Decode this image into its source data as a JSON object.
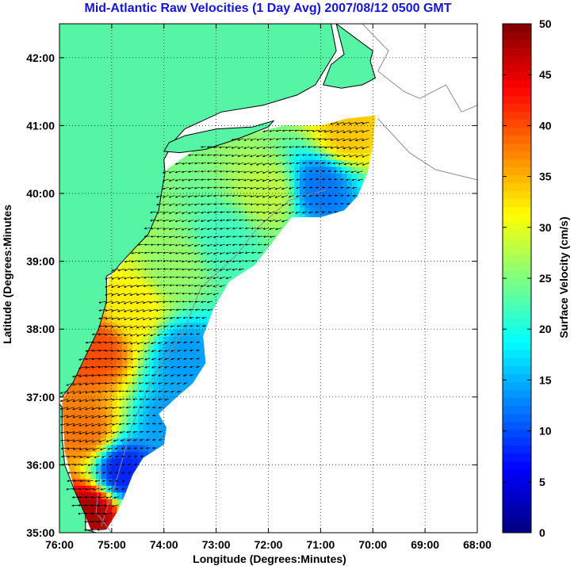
{
  "chart_data": {
    "type": "heatmap",
    "title": "Mid-Atlantic Raw Velocities (1 Day Avg) 2007/08/12 0500 GMT",
    "xlabel": "Longitude (Degrees:Minutes)",
    "ylabel": "Latitude (Degrees:Minutes",
    "xlim": [
      -76,
      -68
    ],
    "ylim": [
      35,
      42.5
    ],
    "xticks": [
      -76,
      -75,
      -74,
      -73,
      -72,
      -71,
      -70,
      -69,
      -68
    ],
    "xtick_labels": [
      "76:00",
      "75:00",
      "74:00",
      "73:00",
      "72:00",
      "71:00",
      "70:00",
      "69:00",
      "68:00"
    ],
    "yticks": [
      35,
      36,
      37,
      38,
      39,
      40,
      41,
      42
    ],
    "ytick_labels": [
      "35:00",
      "36:00",
      "37:00",
      "38:00",
      "39:00",
      "40:00",
      "41:00",
      "42:00"
    ],
    "grid": "dotted",
    "colorbar": {
      "label": "Surface Velocity (cm/s)",
      "min": 0,
      "max": 50,
      "ticks": [
        0,
        5,
        10,
        15,
        20,
        25,
        30,
        35,
        40,
        45,
        50
      ],
      "tick_labels": [
        "0",
        "5",
        "10",
        "15",
        "20",
        "25",
        "30",
        "35",
        "40",
        "45",
        "50"
      ],
      "colormap": "jet"
    },
    "land_color": "#55f5a5",
    "vector_color": "#000000",
    "velocity_regions": [
      {
        "lon": -75.4,
        "lat": 35.3,
        "speed": 48
      },
      {
        "lon": -75.5,
        "lat": 36.5,
        "speed": 38
      },
      {
        "lon": -75.3,
        "lat": 37.7,
        "speed": 40
      },
      {
        "lon": -74.6,
        "lat": 38.3,
        "speed": 32
      },
      {
        "lon": -74.8,
        "lat": 35.9,
        "speed": 8
      },
      {
        "lon": -73.8,
        "lat": 36.7,
        "speed": 14
      },
      {
        "lon": -73.6,
        "lat": 37.6,
        "speed": 14
      },
      {
        "lon": -73.8,
        "lat": 38.9,
        "speed": 26
      },
      {
        "lon": -72.8,
        "lat": 39.3,
        "speed": 22
      },
      {
        "lon": -72.0,
        "lat": 40.0,
        "speed": 28
      },
      {
        "lon": -71.0,
        "lat": 40.1,
        "speed": 12
      },
      {
        "lon": -70.5,
        "lat": 40.9,
        "speed": 34
      }
    ]
  }
}
